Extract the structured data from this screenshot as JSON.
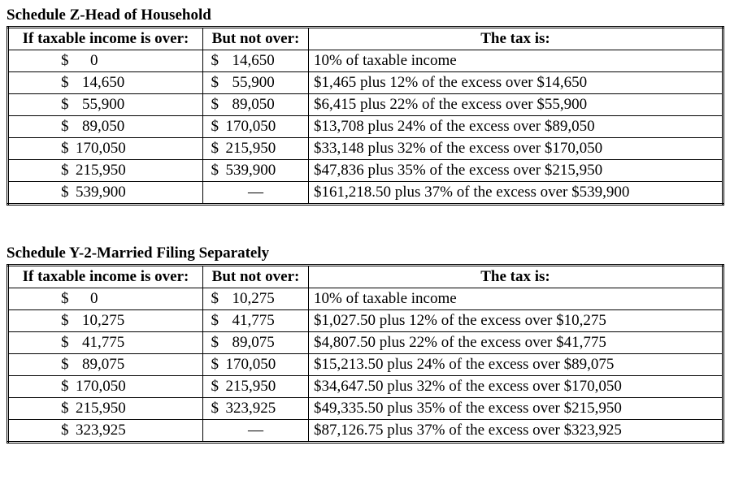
{
  "columns": {
    "over": "If taxable income is over:",
    "not_over": "But not over:",
    "tax": "The tax is:"
  },
  "schedules": [
    {
      "title": "Schedule Z-Head of Household",
      "rows": [
        {
          "over": "0",
          "over_pad": "pad1",
          "not_over": "14,650",
          "not_over_pad": "pad2",
          "tax": "10% of taxable income"
        },
        {
          "over": "14,650",
          "over_pad": "pad2",
          "not_over": "55,900",
          "not_over_pad": "pad2",
          "tax": "$1,465 plus 12% of the excess over $14,650"
        },
        {
          "over": "55,900",
          "over_pad": "pad2",
          "not_over": "89,050",
          "not_over_pad": "pad2",
          "tax": "$6,415 plus 22% of the excess over $55,900"
        },
        {
          "over": "89,050",
          "over_pad": "pad2",
          "not_over": "170,050",
          "not_over_pad": "pad3",
          "tax": "$13,708 plus 24% of the excess over $89,050"
        },
        {
          "over": "170,050",
          "over_pad": "pad3",
          "not_over": "215,950",
          "not_over_pad": "pad3",
          "tax": "$33,148 plus 32% of the excess over $170,050"
        },
        {
          "over": "215,950",
          "over_pad": "pad3",
          "not_over": "539,900",
          "not_over_pad": "pad3",
          "tax": "$47,836 plus 35% of the excess over $215,950"
        },
        {
          "over": "539,900",
          "over_pad": "pad3",
          "not_over": "—",
          "not_over_pad": "dash",
          "tax": "$161,218.50 plus 37% of the excess over $539,900"
        }
      ]
    },
    {
      "title": "Schedule Y-2-Married Filing Separately",
      "rows": [
        {
          "over": "0",
          "over_pad": "pad1",
          "not_over": "10,275",
          "not_over_pad": "pad2",
          "tax": "10% of taxable income"
        },
        {
          "over": "10,275",
          "over_pad": "pad2",
          "not_over": "41,775",
          "not_over_pad": "pad2",
          "tax": "$1,027.50 plus 12% of the excess over $10,275"
        },
        {
          "over": "41,775",
          "over_pad": "pad2",
          "not_over": "89,075",
          "not_over_pad": "pad2",
          "tax": "$4,807.50 plus 22% of the excess over $41,775"
        },
        {
          "over": "89,075",
          "over_pad": "pad2",
          "not_over": "170,050",
          "not_over_pad": "pad3",
          "tax": "$15,213.50 plus 24% of the excess over $89,075"
        },
        {
          "over": "170,050",
          "over_pad": "pad3",
          "not_over": "215,950",
          "not_over_pad": "pad3",
          "tax": "$34,647.50 plus 32% of the excess over $170,050"
        },
        {
          "over": "215,950",
          "over_pad": "pad3",
          "not_over": "323,925",
          "not_over_pad": "pad3",
          "tax": "$49,335.50 plus 35% of the excess over $215,950"
        },
        {
          "over": "323,925",
          "over_pad": "pad3",
          "not_over": "—",
          "not_over_pad": "dash",
          "tax": "$87,126.75 plus 37% of the excess over $323,925"
        }
      ]
    }
  ]
}
